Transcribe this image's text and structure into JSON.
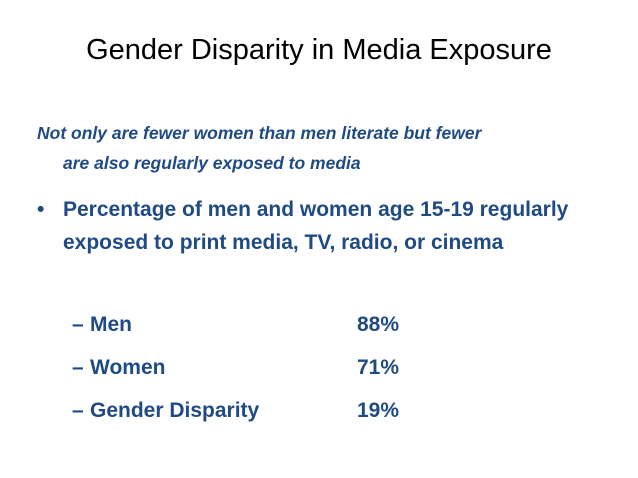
{
  "slide": {
    "title": "Gender Disparity in Media Exposure",
    "subtitle_line1": "Not only are fewer women than men literate but fewer",
    "subtitle_line2": "are also regularly exposed to media",
    "bullet_symbol": "•",
    "bullet_text": "Percentage of men and women age 15-19 regularly exposed to print media, TV, radio, or cinema",
    "items": [
      {
        "dash": "–",
        "label": "Men",
        "value": "88%"
      },
      {
        "dash": "–",
        "label": "Women",
        "value": "71%"
      },
      {
        "dash": "–",
        "label": "Gender Disparity",
        "value": "19%"
      }
    ],
    "colors": {
      "title": "#000000",
      "body": "#1f4a84"
    }
  }
}
